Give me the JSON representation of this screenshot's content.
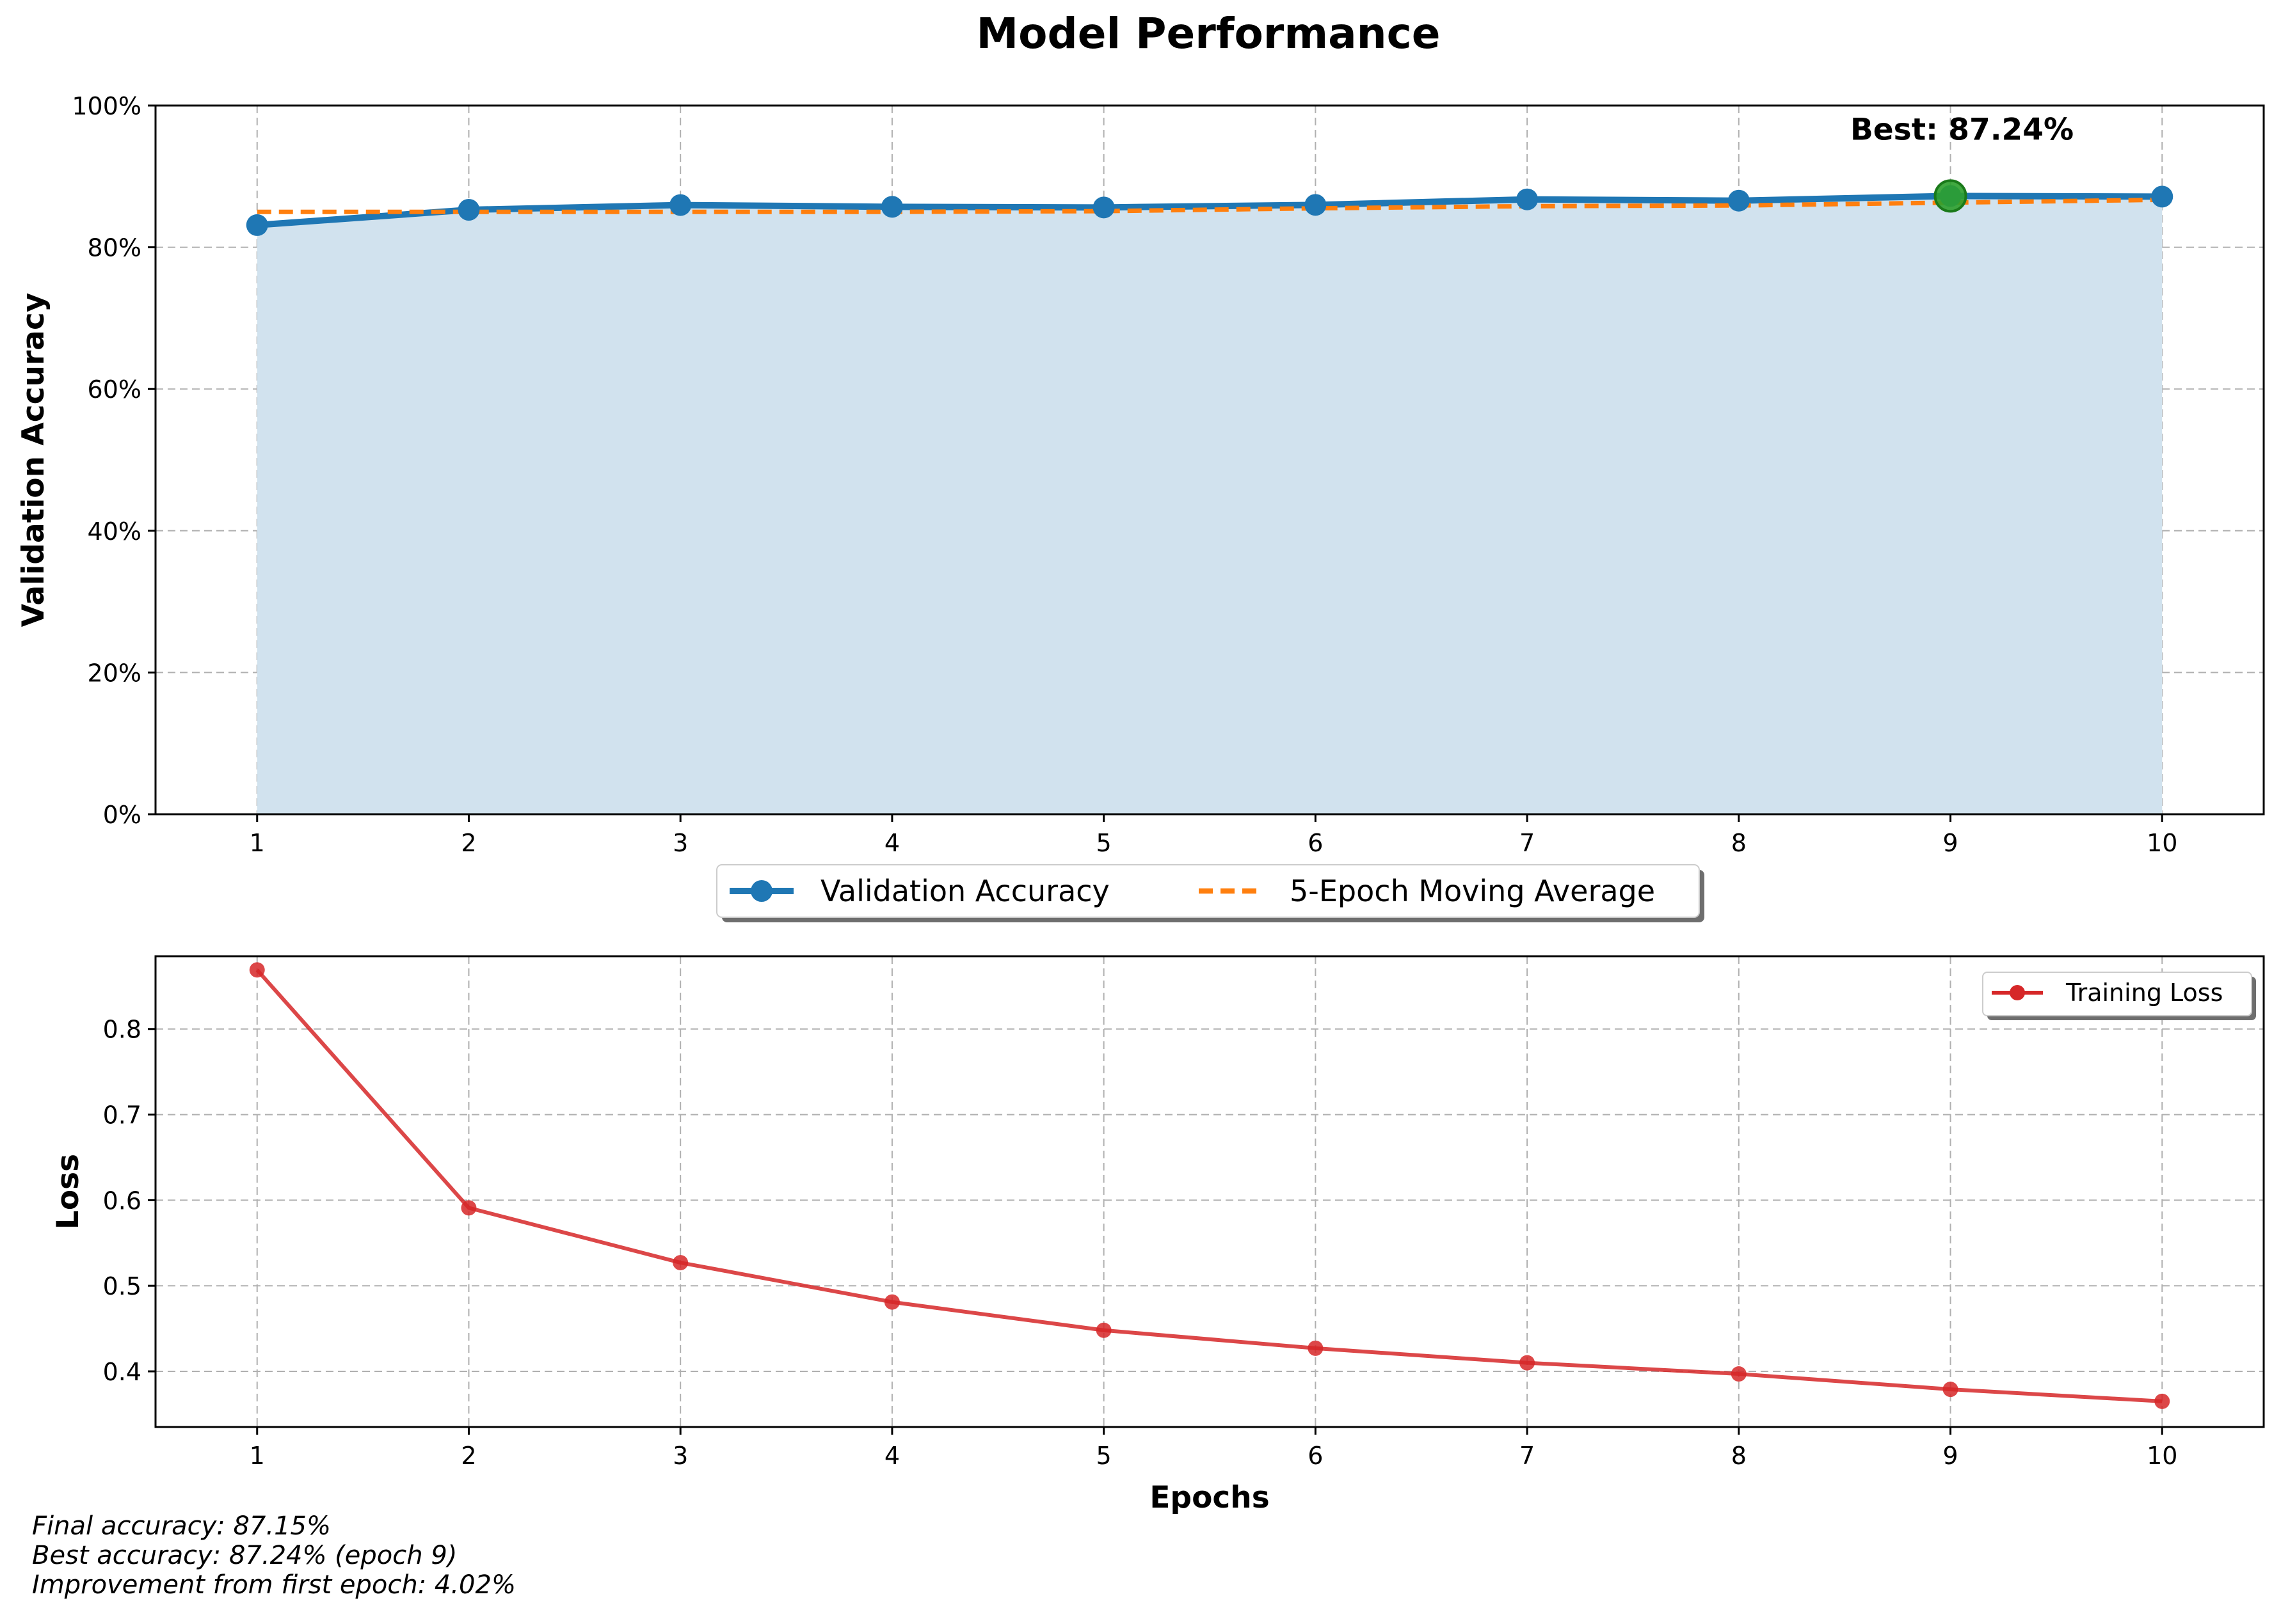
{
  "title": "Model Performance",
  "chart_data": [
    {
      "type": "area",
      "xlabel": "",
      "ylabel": "Validation Accuracy",
      "x": [
        1,
        2,
        3,
        4,
        5,
        6,
        7,
        8,
        9,
        10
      ],
      "xlim": [
        0.52,
        10.48
      ],
      "ylim": [
        0,
        100
      ],
      "y_ticks": [
        "0%",
        "20%",
        "40%",
        "60%",
        "80%",
        "100%"
      ],
      "grid": true,
      "series": [
        {
          "name": "Validation Accuracy",
          "values": [
            83.13,
            85.29,
            85.96,
            85.71,
            85.62,
            85.98,
            86.76,
            86.58,
            87.24,
            87.15
          ],
          "color": "#1f77b4",
          "style": "solid-marker",
          "fill": "#d1e2ee"
        },
        {
          "name": "5-Epoch Moving Average",
          "values": [
            85.0,
            85.0,
            85.0,
            85.0,
            85.1,
            85.5,
            85.8,
            85.9,
            86.3,
            86.7
          ],
          "color": "#ff7f0e",
          "style": "dashed"
        }
      ],
      "best_marker": {
        "x": 9,
        "value": 87.24,
        "color": "#2ca02c"
      },
      "annotation": "Best: 87.24%",
      "legend_position": "below-center"
    },
    {
      "type": "line",
      "xlabel": "Epochs",
      "ylabel": "Loss",
      "x": [
        1,
        2,
        3,
        4,
        5,
        6,
        7,
        8,
        9,
        10
      ],
      "xlim": [
        0.52,
        10.48
      ],
      "ylim": [
        0.335,
        0.885
      ],
      "y_ticks": [
        "0.4",
        "0.5",
        "0.6",
        "0.7",
        "0.8"
      ],
      "grid": true,
      "series": [
        {
          "name": "Training Loss",
          "values": [
            0.869,
            0.591,
            0.527,
            0.481,
            0.448,
            0.427,
            0.41,
            0.397,
            0.379,
            0.365
          ],
          "color": "#d62728"
        }
      ],
      "legend_position": "top-right"
    }
  ],
  "notes": [
    "Final accuracy: 87.15%",
    "Best accuracy: 87.24% (epoch 9)",
    "Improvement from first epoch: 4.02%"
  ]
}
